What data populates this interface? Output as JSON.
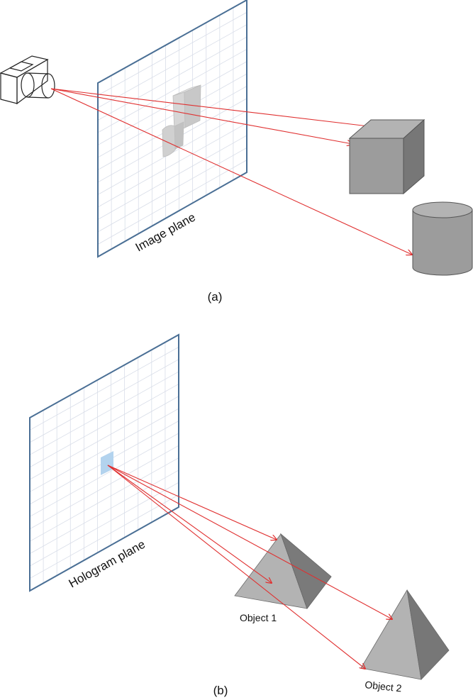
{
  "panel_a": {
    "plane_label": "Image plane",
    "caption": "(a)"
  },
  "panel_b": {
    "plane_label": "Hologram plane",
    "caption": "(b)",
    "object1_label": "Object 1",
    "object2_label": "Object 2"
  },
  "colors": {
    "plane_border": "#4a6f95",
    "grid": "#d8dde8",
    "ray": "#e03030",
    "object_light": "#b3b3b3",
    "object_mid": "#9c9c9c",
    "object_dark": "#777777",
    "pixel_highlight": "#b3d3ee"
  }
}
